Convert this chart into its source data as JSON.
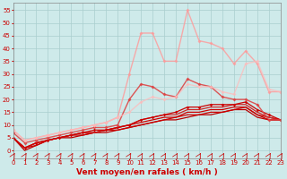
{
  "xlabel": "Vent moyen/en rafales ( km/h )",
  "background_color": "#ceeaea",
  "grid_color": "#aacece",
  "x_ticks": [
    0,
    1,
    2,
    3,
    4,
    5,
    6,
    7,
    8,
    9,
    10,
    11,
    12,
    13,
    14,
    15,
    16,
    17,
    18,
    19,
    20,
    21,
    22,
    23
  ],
  "y_ticks": [
    0,
    5,
    10,
    15,
    20,
    25,
    30,
    35,
    40,
    45,
    50,
    55
  ],
  "ylim": [
    -3,
    58
  ],
  "xlim": [
    0,
    23
  ],
  "lines": [
    {
      "x": [
        0,
        1,
        2,
        3,
        4,
        5,
        6,
        7,
        8,
        9,
        10,
        11,
        12,
        13,
        14,
        15,
        16,
        17,
        18,
        19,
        20,
        21,
        22,
        23
      ],
      "y": [
        5,
        0,
        2,
        4,
        5,
        5,
        6,
        7,
        7,
        8,
        9,
        10,
        11,
        12,
        12,
        13,
        14,
        14,
        15,
        16,
        16,
        13,
        12,
        12
      ],
      "color": "#bb0000",
      "lw": 0.9,
      "marker": null,
      "ms": 0,
      "alpha": 1.0
    },
    {
      "x": [
        0,
        1,
        2,
        3,
        4,
        5,
        6,
        7,
        8,
        9,
        10,
        11,
        12,
        13,
        14,
        15,
        16,
        17,
        18,
        19,
        20,
        21,
        22,
        23
      ],
      "y": [
        5,
        1,
        2,
        4,
        5,
        6,
        6,
        7,
        8,
        8,
        9,
        10,
        11,
        12,
        13,
        14,
        14,
        15,
        15,
        16,
        17,
        14,
        12,
        12
      ],
      "color": "#cc0000",
      "lw": 0.9,
      "marker": null,
      "ms": 0,
      "alpha": 1.0
    },
    {
      "x": [
        0,
        1,
        2,
        3,
        4,
        5,
        6,
        7,
        8,
        9,
        10,
        11,
        12,
        13,
        14,
        15,
        16,
        17,
        18,
        19,
        20,
        21,
        22,
        23
      ],
      "y": [
        5,
        1,
        3,
        4,
        5,
        6,
        7,
        7,
        8,
        9,
        10,
        11,
        12,
        13,
        13,
        15,
        15,
        16,
        16,
        17,
        17,
        14,
        13,
        12
      ],
      "color": "#cc0000",
      "lw": 0.9,
      "marker": null,
      "ms": 0,
      "alpha": 1.0
    },
    {
      "x": [
        0,
        1,
        2,
        3,
        4,
        5,
        6,
        7,
        8,
        9,
        10,
        11,
        12,
        13,
        14,
        15,
        16,
        17,
        18,
        19,
        20,
        21,
        22,
        23
      ],
      "y": [
        5,
        1,
        3,
        4,
        5,
        6,
        7,
        7,
        8,
        9,
        10,
        12,
        13,
        14,
        14,
        16,
        16,
        17,
        17,
        18,
        18,
        15,
        13,
        12
      ],
      "color": "#cc2222",
      "lw": 0.9,
      "marker": null,
      "ms": 0,
      "alpha": 1.0
    },
    {
      "x": [
        0,
        1,
        2,
        3,
        4,
        5,
        6,
        7,
        8,
        9,
        10,
        11,
        12,
        13,
        14,
        15,
        16,
        17,
        18,
        19,
        20,
        21,
        22,
        23
      ],
      "y": [
        5,
        1,
        3,
        4,
        5,
        6,
        7,
        8,
        8,
        9,
        10,
        12,
        13,
        14,
        15,
        17,
        17,
        18,
        18,
        18,
        19,
        16,
        14,
        12
      ],
      "color": "#cc0000",
      "lw": 0.9,
      "marker": "D",
      "ms": 1.8,
      "alpha": 1.0
    },
    {
      "x": [
        0,
        1,
        2,
        3,
        4,
        5,
        6,
        7,
        8,
        9,
        10,
        11,
        12,
        13,
        14,
        15,
        16,
        17,
        18,
        19,
        20,
        21,
        22,
        23
      ],
      "y": [
        7,
        3,
        4,
        5,
        6,
        7,
        8,
        9,
        9,
        10,
        20,
        26,
        25,
        22,
        21,
        28,
        26,
        25,
        21,
        20,
        20,
        18,
        12,
        12
      ],
      "color": "#dd4444",
      "lw": 1.0,
      "marker": "D",
      "ms": 2.0,
      "alpha": 0.9
    },
    {
      "x": [
        0,
        1,
        2,
        3,
        4,
        5,
        6,
        7,
        8,
        9,
        10,
        11,
        12,
        13,
        14,
        15,
        16,
        17,
        18,
        19,
        20,
        21,
        22,
        23
      ],
      "y": [
        8,
        4,
        5,
        6,
        7,
        8,
        9,
        10,
        11,
        13,
        30,
        46,
        46,
        35,
        35,
        55,
        43,
        42,
        40,
        34,
        39,
        34,
        23,
        23
      ],
      "color": "#ff9999",
      "lw": 1.0,
      "marker": "D",
      "ms": 2.0,
      "alpha": 0.8
    },
    {
      "x": [
        0,
        1,
        2,
        3,
        4,
        5,
        6,
        7,
        8,
        9,
        10,
        11,
        12,
        13,
        14,
        15,
        16,
        17,
        18,
        19,
        20,
        21,
        22,
        23
      ],
      "y": [
        8,
        4,
        5,
        6,
        7,
        8,
        9,
        10,
        11,
        13,
        15,
        19,
        21,
        20,
        21,
        26,
        25,
        25,
        23,
        22,
        34,
        35,
        24,
        23
      ],
      "color": "#ffbbbb",
      "lw": 1.0,
      "marker": "D",
      "ms": 2.0,
      "alpha": 0.75
    }
  ],
  "arrow_color": "#cc0000",
  "label_fontsize": 6.5,
  "tick_fontsize": 5.0
}
